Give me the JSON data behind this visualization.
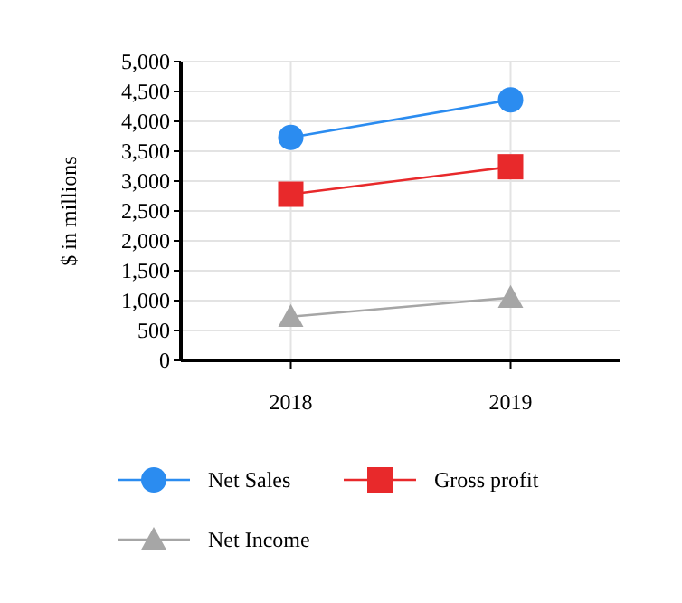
{
  "chart_data": {
    "type": "line",
    "ylabel": "$ in millions",
    "categories": [
      "2018",
      "2019"
    ],
    "series": [
      {
        "name": "Net Sales",
        "color": "#2b8cf0",
        "values": [
          3730,
          4360
        ],
        "marker": "circle"
      },
      {
        "name": "Gross profit",
        "color": "#e8292b",
        "values": [
          2780,
          3240
        ],
        "marker": "square"
      },
      {
        "name": "Net Income",
        "color": "#a6a6a6",
        "values": [
          730,
          1050
        ],
        "marker": "triangle"
      }
    ],
    "ylim": [
      0,
      5000
    ],
    "yticks": [
      {
        "value": 0,
        "label": "0"
      },
      {
        "value": 500,
        "label": "500"
      },
      {
        "value": 1000,
        "label": "1,000"
      },
      {
        "value": 1500,
        "label": "1,500"
      },
      {
        "value": 2000,
        "label": "2,000"
      },
      {
        "value": 2500,
        "label": "2,500"
      },
      {
        "value": 3000,
        "label": "3,000"
      },
      {
        "value": 3500,
        "label": "3,500"
      },
      {
        "value": 4000,
        "label": "4,000"
      },
      {
        "value": 4500,
        "label": "4,500"
      },
      {
        "value": 5000,
        "label": "5,000"
      }
    ],
    "grid": true,
    "legend": "bottom"
  }
}
